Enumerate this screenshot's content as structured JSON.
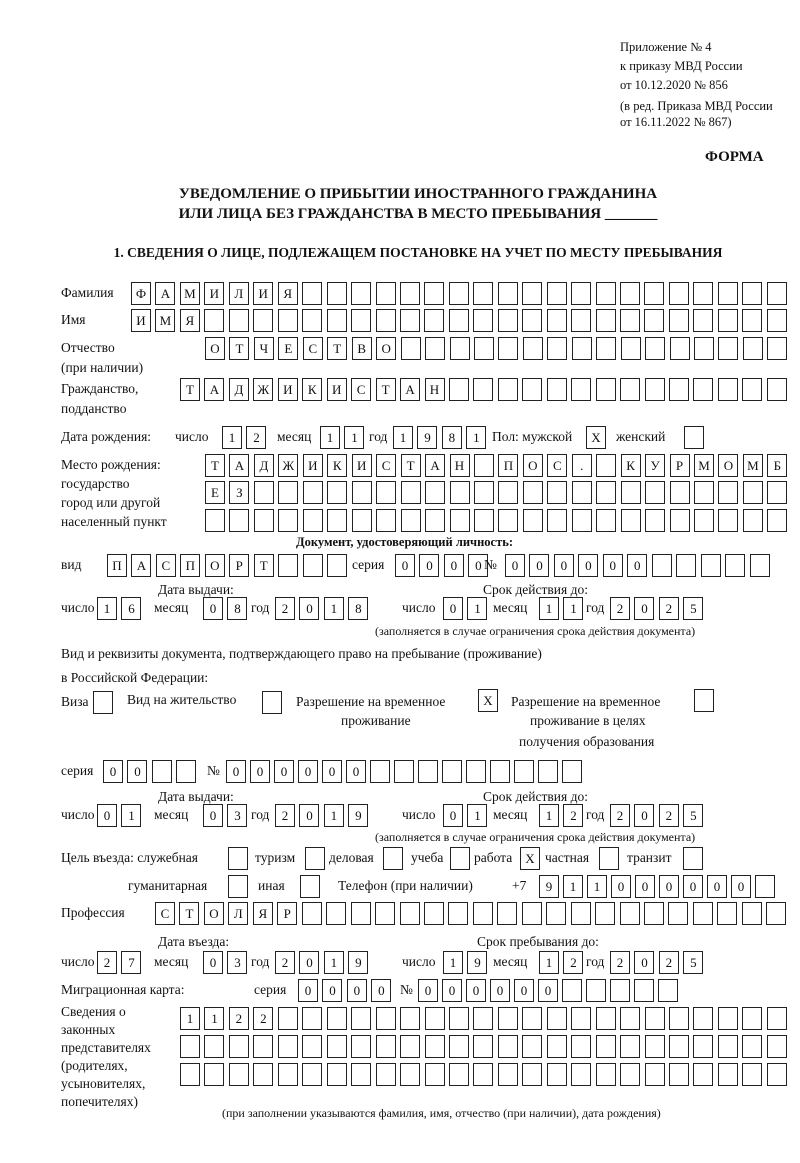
{
  "header": {
    "line1": "Приложение № 4",
    "line2": "к приказу МВД России",
    "line3": "от 10.12.2020 № 856",
    "line4": "(в ред. Приказа МВД России",
    "line5": "от 16.11.2022 № 867)",
    "form_label": "ФОРМА"
  },
  "title": {
    "line1": "УВЕДОМЛЕНИЕ О ПРИБЫТИИ ИНОСТРАННОГО ГРАЖДАНИНА",
    "line2": "ИЛИ ЛИЦА БЕЗ ГРАЖДАНСТВА В МЕСТО ПРЕБЫВАНИЯ _______"
  },
  "section1": {
    "heading": "1. СВЕДЕНИЯ О ЛИЦЕ, ПОДЛЕЖАЩЕМ ПОСТАНОВКЕ НА УЧЕТ ПО МЕСТУ ПРЕБЫВАНИЯ",
    "surname": {
      "label": "Фамилия",
      "value": "ФАМИЛИЯ"
    },
    "name": {
      "label": "Имя",
      "value": "ИМЯ"
    },
    "patronymic": {
      "label": "Отчество",
      "label2": "(при наличии)",
      "value": "ОТЧЕСТВО"
    },
    "citizenship": {
      "label": "Гражданство,",
      "label2": "подданство",
      "value": "ТАДЖИКИСТАН"
    },
    "birth": {
      "label": "Дата рождения:",
      "day_label": "число",
      "month_label": "месяц",
      "year_label": "год",
      "day": "12",
      "month": "11",
      "year": "1981",
      "sex_label": "Пол: мужской",
      "female_label": "женский",
      "male": "X",
      "female": ""
    },
    "birthplace": {
      "label1": "Место рождения:",
      "label2": "государство",
      "label3": "город или другой",
      "label4": "населенный пункт",
      "row1": "ТАДЖИКИСТАН ПОС. КУРМОМБ",
      "row2": "ЕЗ",
      "row3": ""
    },
    "id_doc": {
      "heading": "Документ, удостоверяющий личность:",
      "kind_label": "вид",
      "kind": "ПАСПОРТ",
      "series_label": "серия",
      "series": "0000",
      "number_label": "№",
      "number": "000000",
      "issue_label": "Дата выдачи:",
      "valid_label": "Срок действия до:",
      "day_label": "число",
      "month_label": "месяц",
      "year_label": "год",
      "issue_day": "16",
      "issue_month": "08",
      "issue_year": "2018",
      "valid_day": "01",
      "valid_month": "11",
      "valid_year": "2025",
      "note": "(заполняется в случае ограничения срока действия документа)"
    },
    "stay_doc": {
      "label1": "Вид и реквизиты документа, подтверждающего право на пребывание (проживание)",
      "label2": "в Российской Федерации:",
      "visa_label": "Виза",
      "visa": "",
      "residence_label": "Вид на жительство",
      "residence": "",
      "temp_label1": "Разрешение на временное",
      "temp_label2": "проживание",
      "temp": "X",
      "edu_label1": "Разрешение на временное",
      "edu_label2": "проживание в целях",
      "edu_label3": "получения образования",
      "edu": "",
      "series_label": "серия",
      "series": "00",
      "number_label": "№",
      "number": "000000",
      "issue_label": "Дата выдачи:",
      "valid_label": "Срок действия до:",
      "day_label": "число",
      "month_label": "месяц",
      "year_label": "год",
      "issue_day": "01",
      "issue_month": "03",
      "issue_year": "2019",
      "valid_day": "01",
      "valid_month": "12",
      "valid_year": "2025",
      "note": "(заполняется в случае ограничения срока действия документа)"
    },
    "purpose": {
      "label": "Цель въезда: служебная",
      "service": "",
      "tourism_label": "туризм",
      "tourism": "",
      "business_label": "деловая",
      "business": "",
      "study_label": "учеба",
      "study": "",
      "work_label": "работа",
      "work": "X",
      "private_label": "частная",
      "private": "",
      "transit_label": "транзит",
      "transit": "",
      "humanitarian_label": "гуманитарная",
      "humanitarian": "",
      "other_label": "иная",
      "other": ""
    },
    "phone": {
      "label": "Телефон (при наличии)",
      "prefix": "+7",
      "value": "911000000"
    },
    "profession": {
      "label": "Профессия",
      "value": "СТОЛЯР"
    },
    "entry": {
      "entry_label": "Дата въезда:",
      "stay_label": "Срок пребывания до:",
      "day_label": "число",
      "month_label": "месяц",
      "year_label": "год",
      "entry_day": "27",
      "entry_month": "03",
      "entry_year": "2019",
      "stay_day": "19",
      "stay_month": "12",
      "stay_year": "2025"
    },
    "migration_card": {
      "label": "Миграционная карта:",
      "series_label": "серия",
      "series": "0000",
      "number_label": "№",
      "number": "000000"
    },
    "representatives": {
      "label1": "Сведения о",
      "label2": "законных",
      "label3": "представителях",
      "label4": "(родителях,",
      "label5": "усыновителях,",
      "label6": "попечителях)",
      "row1": "1122",
      "row2": "",
      "row3": "",
      "note": "(при заполнении указываются фамилия, имя, отчество (при наличии), дата рождения)"
    }
  }
}
